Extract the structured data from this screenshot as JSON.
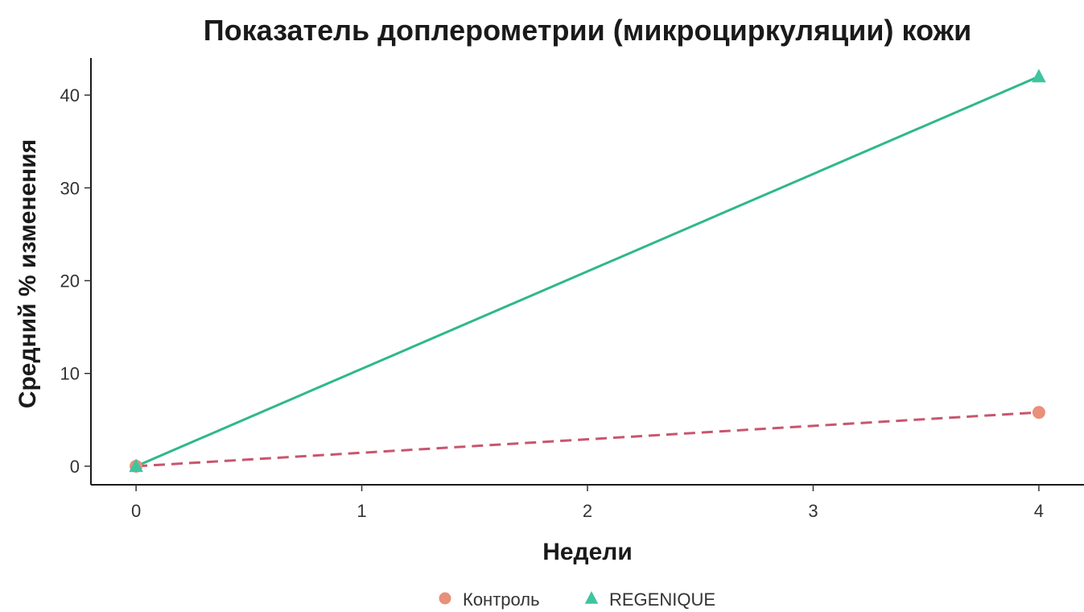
{
  "chart_data": {
    "type": "line",
    "title": "Показатель доплерометрии (микроциркуляции) кожи",
    "xlabel": "Недели",
    "ylabel": "Средний % изменения",
    "x": [
      0,
      4
    ],
    "xlim": [
      -0.2,
      4.2
    ],
    "ylim": [
      -2,
      44
    ],
    "xticks": [
      0,
      1,
      2,
      3,
      4
    ],
    "yticks": [
      0,
      10,
      20,
      30,
      40
    ],
    "grid": false,
    "legend_position": "bottom",
    "series": [
      {
        "name": "Контроль",
        "values": [
          0,
          5.8
        ],
        "color": "#e8907a",
        "line_color": "#c8566e",
        "line_style": "dashed",
        "marker": "circle"
      },
      {
        "name": "REGENIQUE",
        "values": [
          0,
          42
        ],
        "color": "#3fc4a0",
        "line_color": "#2fb88a",
        "line_style": "solid",
        "marker": "triangle"
      }
    ]
  }
}
